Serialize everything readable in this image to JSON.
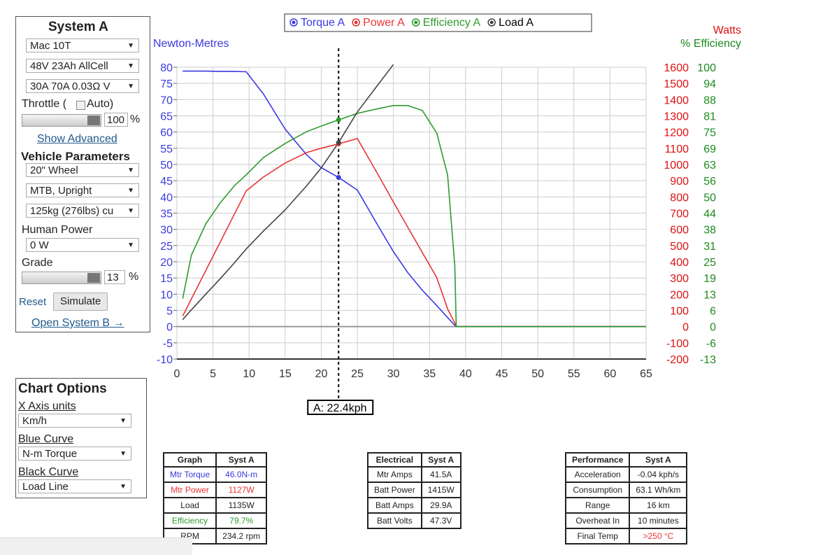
{
  "panel": {
    "title": "System A",
    "motor": "Mac 10T",
    "battery": "48V 23Ah AllCell",
    "controller": "30A 70A 0.03Ω V",
    "throttle_label": "Throttle (",
    "auto_label": "Auto)",
    "throttle_value": "100",
    "throttle_unit": "%",
    "show_advanced": "Show Advanced",
    "vehicle_title": "Vehicle Parameters",
    "wheel": "20\"  Wheel",
    "frame": "MTB, Upright",
    "mass": "125kg (276lbs) cu",
    "human_label": "Human Power",
    "human_value": "0 W",
    "grade_label": "Grade",
    "grade_value": "13",
    "grade_unit": "%",
    "reset": "Reset",
    "simulate": "Simulate",
    "open_b": "Open System B →"
  },
  "options": {
    "title": "Chart Options",
    "x_label": "X Axis units",
    "x_value": "Km/h",
    "blue_label": "Blue Curve",
    "blue_value": "N-m Torque",
    "black_label": "Black Curve",
    "black_value": "Load Line"
  },
  "chart_data": {
    "type": "line",
    "ylabel": "Newton-Metres",
    "y2label": "Watts",
    "y3label": "% Efficiency",
    "x": [
      0.8,
      2,
      4,
      6,
      8,
      9.6,
      12,
      15,
      18,
      20,
      22.4,
      25,
      28,
      30,
      32,
      34,
      36,
      37.5,
      38.5,
      38.7,
      40,
      50,
      65
    ],
    "series": [
      {
        "name": "Torque A",
        "color": "#3a3ae0",
        "axis": "y",
        "values": [
          78.8,
          78.8,
          78.8,
          78.7,
          78.7,
          78.6,
          71.7,
          60.9,
          52.9,
          49,
          46.0,
          42.1,
          30.6,
          23.1,
          16.6,
          11.2,
          6.5,
          2.8,
          0.4,
          0,
          0,
          0,
          0
        ]
      },
      {
        "name": "Power A",
        "color": "#e83434",
        "axis": "y2",
        "values": [
          65,
          170,
          346,
          521,
          697,
          837,
          923,
          1009,
          1074,
          1100,
          1127,
          1160,
          927,
          768,
          612,
          457,
          302,
          110,
          22,
          0,
          0,
          0,
          0
        ]
      },
      {
        "name": "Efficiency A",
        "color": "#2e9a2e",
        "axis": "y3",
        "values": [
          10.8,
          27.5,
          39.6,
          47.7,
          54.4,
          58.5,
          65.2,
          70.6,
          75.2,
          77.3,
          79.7,
          82.2,
          84.1,
          85.2,
          85.2,
          83.3,
          74.6,
          58.5,
          23.4,
          0,
          0,
          0,
          0
        ]
      },
      {
        "name": "Load A",
        "color": "#444444",
        "axis": "y2",
        "values": [
          43,
          103,
          200,
          295,
          395,
          479,
          590,
          720,
          870,
          979,
          1135,
          1324,
          1500,
          1617,
          null,
          null,
          null,
          null,
          null,
          null,
          null,
          null,
          null
        ]
      }
    ],
    "cursor": {
      "x": 22.4,
      "label": "A: 22.4kph"
    },
    "xlim": [
      0,
      65
    ],
    "xticks": [
      0,
      5,
      10,
      15,
      20,
      25,
      30,
      35,
      40,
      45,
      50,
      55,
      60,
      65
    ],
    "ylim": [
      -10,
      80
    ],
    "yticks": [
      -10,
      -5,
      0,
      5,
      10,
      15,
      20,
      25,
      30,
      35,
      40,
      45,
      50,
      55,
      60,
      65,
      70,
      75,
      80
    ],
    "y2lim": [
      -200,
      1600
    ],
    "y2ticks": [
      -200,
      -100,
      0,
      100,
      200,
      300,
      400,
      500,
      600,
      700,
      800,
      900,
      1000,
      1100,
      1200,
      1300,
      1400,
      1500,
      1600
    ],
    "y3lim": [
      -12.5,
      100
    ],
    "y3ticks": [
      {
        "value": -12.5,
        "label": "-13"
      },
      {
        "value": -6.25,
        "label": "-6"
      },
      0,
      {
        "value": 6.25,
        "label": "6"
      },
      {
        "value": 12.5,
        "label": "13"
      },
      {
        "value": 18.75,
        "label": "19"
      },
      25,
      {
        "value": 31.25,
        "label": "31"
      },
      {
        "value": 37.5,
        "label": "38"
      },
      {
        "value": 43.75,
        "label": "44"
      },
      50,
      {
        "value": 56.25,
        "label": "56"
      },
      {
        "value": 62.5,
        "label": "63"
      },
      {
        "value": 68.75,
        "label": "69"
      },
      75,
      {
        "value": 81.25,
        "label": "81"
      },
      {
        "value": 87.5,
        "label": "88"
      },
      {
        "value": 93.75,
        "label": "94"
      },
      100
    ],
    "grid": true
  },
  "tables": [
    {
      "header": [
        "Graph",
        "Syst A"
      ],
      "rows": [
        [
          "Mtr Torque",
          "46.0N-m"
        ],
        [
          "Mtr Power",
          "1127W"
        ],
        [
          "Load",
          "1135W"
        ],
        [
          "Efficiency",
          "79.7%"
        ],
        [
          "RPM",
          "234.2 rpm"
        ]
      ]
    },
    {
      "header": [
        "Electrical",
        "Syst A"
      ],
      "rows": [
        [
          "Mtr Amps",
          "41.5A"
        ],
        [
          "Batt Power",
          "1415W"
        ],
        [
          "Batt Amps",
          "29.9A"
        ],
        [
          "Batt Volts",
          "47.3V"
        ]
      ]
    },
    {
      "header": [
        "Performance",
        "Syst A"
      ],
      "rows": [
        [
          "Acceleration",
          "-0.04 kph/s"
        ],
        [
          "Consumption",
          "63.1 Wh/km"
        ],
        [
          "Range",
          "16 km"
        ],
        [
          "Overheat In",
          "10 minutes"
        ],
        [
          "Final Temp",
          ">250 °C"
        ]
      ]
    }
  ]
}
